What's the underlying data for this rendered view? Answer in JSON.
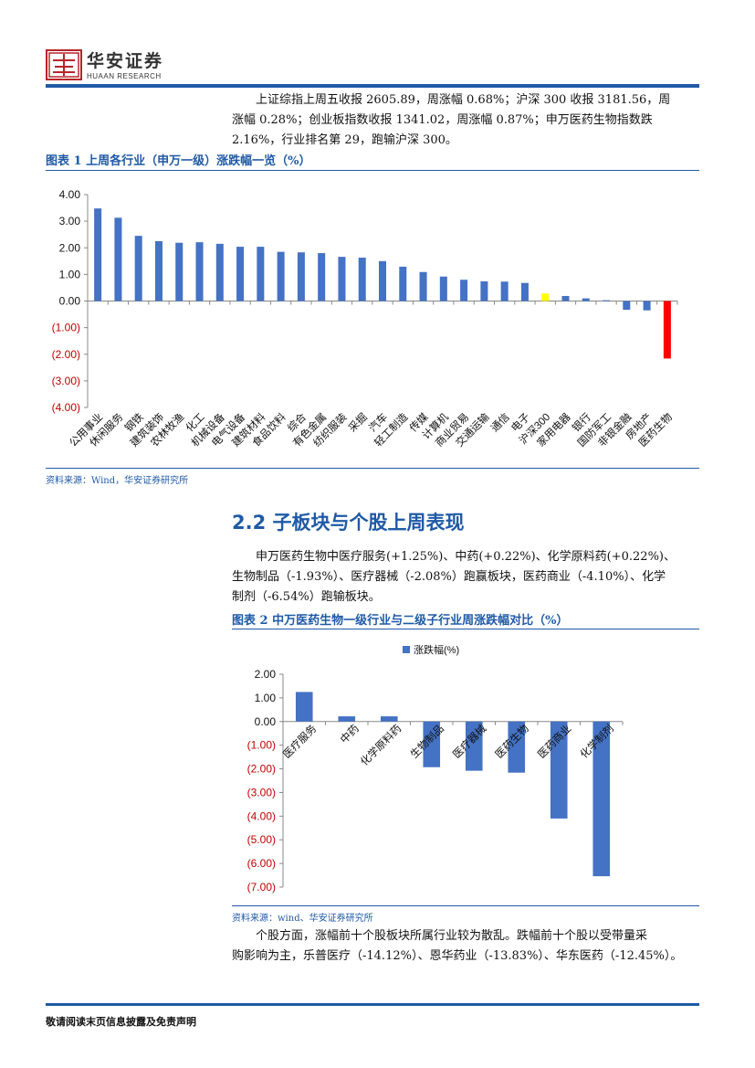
{
  "header": {
    "brand": "华安证券",
    "brand_en": "HUAAN RESEARCH"
  },
  "intro": {
    "line1": "上证综指上周五收报 2605.89，周涨幅 0.68%；沪深 300 收报 3181.56，周",
    "line2": "涨幅 0.28%；创业板指数收报 1341.02，周涨幅 0.87%；申万医药生物指数跌",
    "line3": "2.16%，行业排名第 29，跑输沪深 300。"
  },
  "figure1": {
    "title": "图表 1 上周各行业（申万一级）涨跌幅一览（%）",
    "source": "资料来源：Wind，华安证券研究所"
  },
  "section": {
    "title": "2.2 子板块与个股上周表现"
  },
  "para2": {
    "line1": "申万医药生物中医疗服务(+1.25%)、中药(+0.22%)、化学原料药(+0.22%)、",
    "line2": "生物制品（-1.93%）、医疗器械（-2.08%）跑赢板块，医药商业（-4.10%）、化学",
    "line3": "制剂（-6.54%）跑输板块。"
  },
  "figure2": {
    "title": "图表 2 中万医药生物一级行业与二级子行业周涨跌幅对比（%）",
    "source": "资料来源：wind、华安证券研究所"
  },
  "para3": {
    "line1": "个股方面，涨幅前十个股板块所属行业较为散乱。跌幅前十个股以受带量采",
    "line2": "购影响为主，乐普医疗（-14.12%）、恩华药业（-13.83%）、华东医药（-12.45%）。"
  },
  "footer": {
    "text": "敬请阅读末页信息披露及免责声明"
  },
  "chart_data": [
    {
      "type": "bar",
      "categories": [
        "公用事业",
        "休闲服务",
        "钢铁",
        "建筑装饰",
        "农林牧渔",
        "化工",
        "机械设备",
        "电气设备",
        "建筑材料",
        "食品饮料",
        "综合",
        "有色金属",
        "纺织服装",
        "采掘",
        "汽车",
        "轻工制造",
        "传媒",
        "计算机",
        "商业贸易",
        "交通运输",
        "通信",
        "电子",
        "沪深300",
        "家用电器",
        "银行",
        "国防军工",
        "非银金融",
        "房地产",
        "医药生物"
      ],
      "values": [
        3.48,
        3.13,
        2.45,
        2.25,
        2.19,
        2.21,
        2.15,
        2.04,
        2.04,
        1.85,
        1.83,
        1.8,
        1.66,
        1.63,
        1.5,
        1.29,
        1.09,
        0.92,
        0.8,
        0.74,
        0.73,
        0.68,
        0.28,
        0.19,
        0.1,
        0.03,
        -0.33,
        -0.35,
        -2.16
      ],
      "highlight": {
        "沪深300": "#ffff00",
        "医药生物": "#ff0000"
      },
      "bar_color": "#4472c4",
      "ylim": [
        -4,
        4
      ],
      "yticks": [
        "4.00",
        "3.00",
        "2.00",
        "1.00",
        "0.00",
        "(1.00)",
        "(2.00)",
        "(3.00)",
        "(4.00)"
      ],
      "grid": false
    },
    {
      "type": "bar",
      "categories": [
        "医疗服务",
        "中药",
        "化学原料药",
        "生物制品",
        "医疗器械",
        "医药生物",
        "医药商业",
        "化学制剂"
      ],
      "series": [
        {
          "name": "涨跌幅(%)",
          "values": [
            1.25,
            0.22,
            0.22,
            -1.93,
            -2.08,
            -2.16,
            -4.1,
            -6.54
          ]
        }
      ],
      "bar_color": "#4472c4",
      "ylim": [
        -7,
        2
      ],
      "yticks": [
        "2.00",
        "1.00",
        "0.00",
        "(1.00)",
        "(2.00)",
        "(3.00)",
        "(4.00)",
        "(5.00)",
        "(6.00)",
        "(7.00)"
      ],
      "legend": "top-center",
      "grid": false
    }
  ]
}
